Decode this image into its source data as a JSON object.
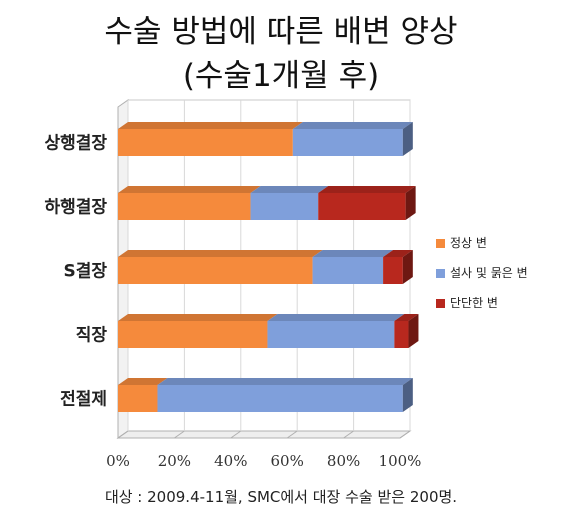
{
  "title_line1": "수술 방법에 따른 배변 양상",
  "title_line2": "(수술1개월 후)",
  "footnote": "대상 : 2009.4-11월, SMC에서 대장 수술 받은 200명.",
  "colors": {
    "normal": "#f58a3c",
    "loose": "#7f9fdb",
    "hard": "#b8281e"
  },
  "chart_data": {
    "type": "bar",
    "orientation": "horizontal",
    "stacked": true,
    "categories": [
      "상행결장",
      "하행결장",
      "S결장",
      "직장",
      "전절제"
    ],
    "series": [
      {
        "name": "정상 변",
        "values": [
          62,
          47,
          69,
          53,
          14
        ]
      },
      {
        "name": "설사 및 묽은 변",
        "values": [
          39,
          24,
          25,
          45,
          87
        ]
      },
      {
        "name": "단단한 변",
        "values": [
          0,
          31,
          7,
          5,
          0
        ]
      }
    ],
    "xlim": [
      0,
      100
    ],
    "x_ticks": [
      "0%",
      "20%",
      "40%",
      "60%",
      "80%",
      "100%"
    ],
    "legend_position": "right"
  }
}
